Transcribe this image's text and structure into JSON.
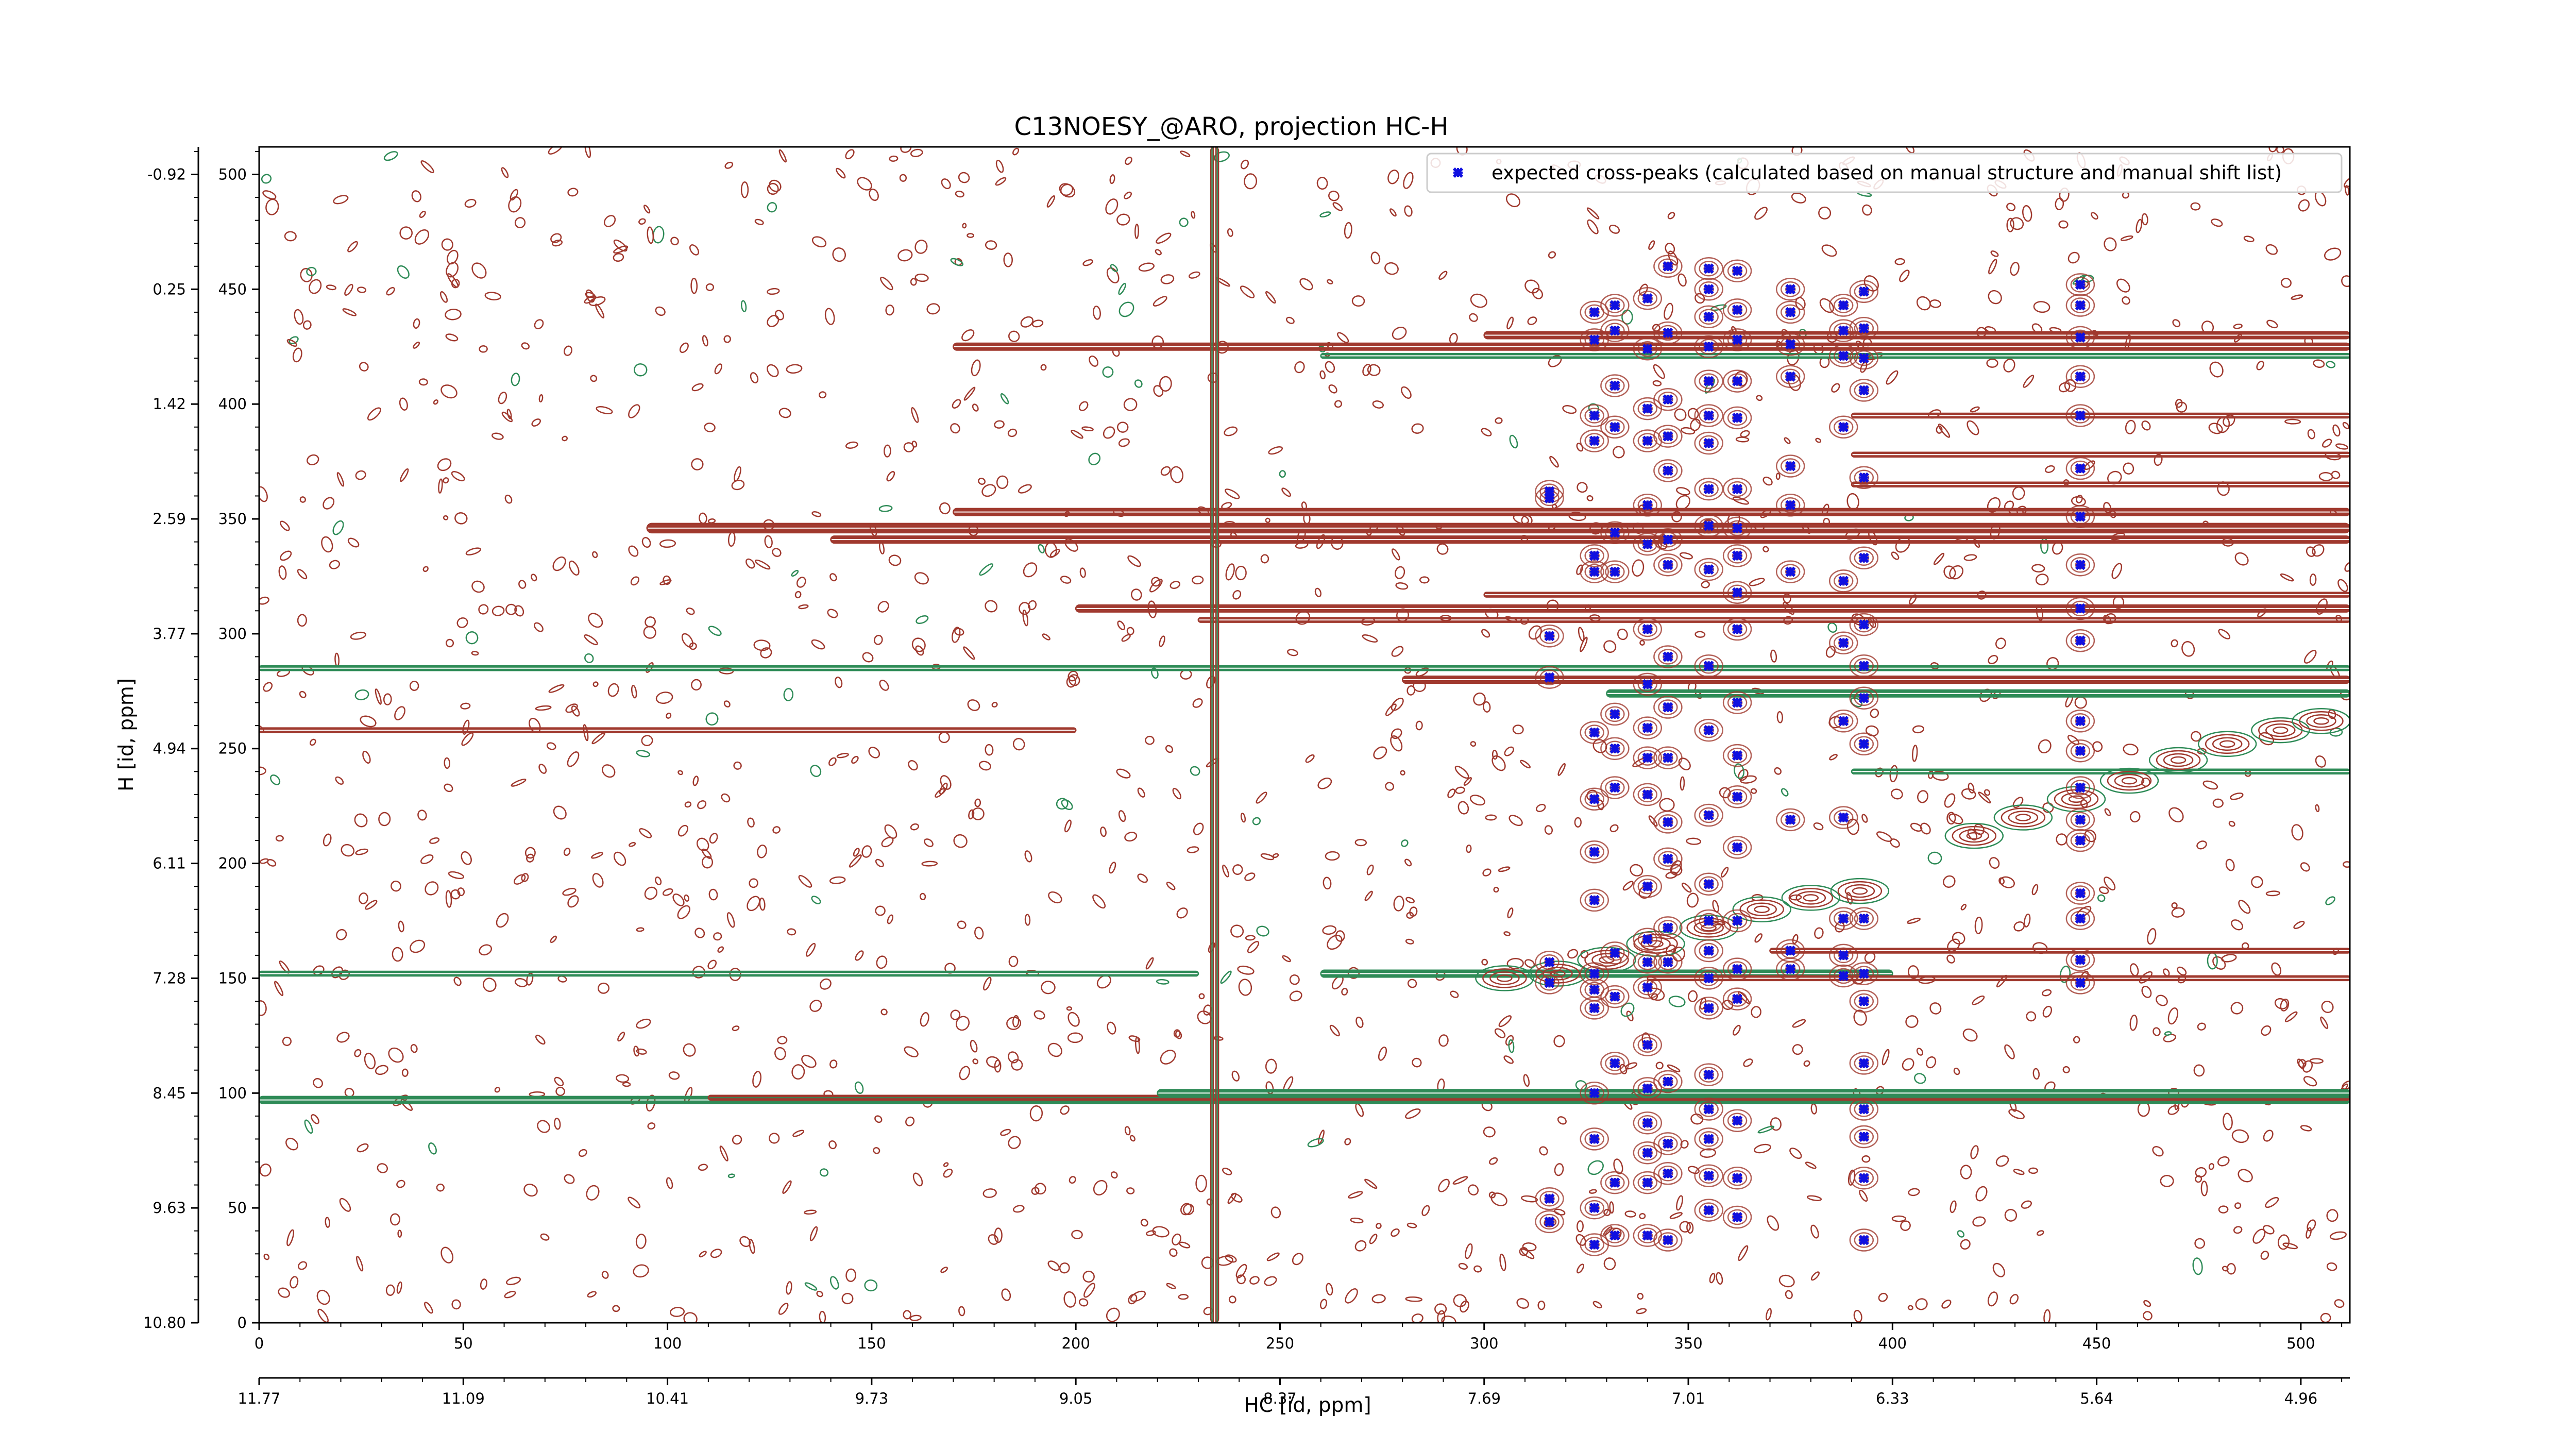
{
  "chart_data": {
    "type": "scatter",
    "title": "C13NOESY_@ARO, projection HC-H",
    "xlabel": "HC [id, ppm]",
    "ylabel": "H [id, ppm]",
    "xlim": [
      0,
      512
    ],
    "ylim": [
      0,
      512
    ],
    "x_ticks": [
      0,
      50,
      100,
      150,
      200,
      250,
      300,
      350,
      400,
      450,
      500
    ],
    "y_ticks": [
      0,
      50,
      100,
      150,
      200,
      250,
      300,
      350,
      400,
      450,
      500
    ],
    "x_ppm_labels": [
      "11.77",
      "11.09",
      "10.41",
      "9.73",
      "9.05",
      "8.37",
      "7.69",
      "7.01",
      "6.33",
      "5.64",
      "4.96"
    ],
    "y_ppm_labels": [
      "10.80",
      "9.63",
      "8.45",
      "7.28",
      "6.11",
      "4.94",
      "3.77",
      "2.59",
      "1.42",
      "0.25",
      "-0.92"
    ],
    "legend": {
      "position": "top-right",
      "entries": [
        "expected cross-peaks (calculated based on manual structure and manual shift list)"
      ]
    },
    "colors": {
      "positive_contour": "#a0392e",
      "negative_contour": "#2e8b57",
      "marker": "#1010e0"
    },
    "series": [
      {
        "name": "expected cross-peaks (calculated based on manual structure and manual shift list)",
        "marker": "x",
        "points": [
          [
            316,
            44
          ],
          [
            316,
            54
          ],
          [
            316,
            148
          ],
          [
            316,
            157
          ],
          [
            316,
            281
          ],
          [
            316,
            299
          ],
          [
            316,
            359
          ],
          [
            316,
            362
          ],
          [
            327,
            34
          ],
          [
            327,
            50
          ],
          [
            327,
            80
          ],
          [
            327,
            100
          ],
          [
            327,
            137
          ],
          [
            327,
            145
          ],
          [
            327,
            152
          ],
          [
            327,
            184
          ],
          [
            327,
            205
          ],
          [
            327,
            228
          ],
          [
            327,
            257
          ],
          [
            327,
            327
          ],
          [
            327,
            334
          ],
          [
            327,
            384
          ],
          [
            327,
            395
          ],
          [
            327,
            428
          ],
          [
            327,
            440
          ],
          [
            332,
            38
          ],
          [
            332,
            61
          ],
          [
            332,
            113
          ],
          [
            332,
            142
          ],
          [
            332,
            161
          ],
          [
            332,
            233
          ],
          [
            332,
            250
          ],
          [
            332,
            265
          ],
          [
            332,
            327
          ],
          [
            332,
            344
          ],
          [
            332,
            390
          ],
          [
            332,
            408
          ],
          [
            332,
            432
          ],
          [
            332,
            443
          ],
          [
            340,
            38
          ],
          [
            340,
            61
          ],
          [
            340,
            74
          ],
          [
            340,
            87
          ],
          [
            340,
            102
          ],
          [
            340,
            121
          ],
          [
            340,
            146
          ],
          [
            340,
            157
          ],
          [
            340,
            167
          ],
          [
            340,
            190
          ],
          [
            340,
            230
          ],
          [
            340,
            246
          ],
          [
            340,
            259
          ],
          [
            340,
            278
          ],
          [
            340,
            302
          ],
          [
            340,
            339
          ],
          [
            340,
            356
          ],
          [
            340,
            384
          ],
          [
            340,
            398
          ],
          [
            340,
            424
          ],
          [
            340,
            446
          ],
          [
            345,
            36
          ],
          [
            345,
            65
          ],
          [
            345,
            78
          ],
          [
            345,
            105
          ],
          [
            345,
            157
          ],
          [
            345,
            172
          ],
          [
            345,
            202
          ],
          [
            345,
            218
          ],
          [
            345,
            246
          ],
          [
            345,
            268
          ],
          [
            345,
            290
          ],
          [
            345,
            330
          ],
          [
            345,
            341
          ],
          [
            345,
            371
          ],
          [
            345,
            386
          ],
          [
            345,
            402
          ],
          [
            345,
            431
          ],
          [
            345,
            460
          ],
          [
            355,
            49
          ],
          [
            355,
            64
          ],
          [
            355,
            80
          ],
          [
            355,
            93
          ],
          [
            355,
            108
          ],
          [
            355,
            137
          ],
          [
            355,
            150
          ],
          [
            355,
            162
          ],
          [
            355,
            175
          ],
          [
            355,
            191
          ],
          [
            355,
            221
          ],
          [
            355,
            258
          ],
          [
            355,
            286
          ],
          [
            355,
            328
          ],
          [
            355,
            347
          ],
          [
            355,
            363
          ],
          [
            355,
            383
          ],
          [
            355,
            395
          ],
          [
            355,
            410
          ],
          [
            355,
            425
          ],
          [
            355,
            438
          ],
          [
            355,
            450
          ],
          [
            355,
            459
          ],
          [
            362,
            46
          ],
          [
            362,
            63
          ],
          [
            362,
            88
          ],
          [
            362,
            141
          ],
          [
            362,
            154
          ],
          [
            362,
            175
          ],
          [
            362,
            207
          ],
          [
            362,
            229
          ],
          [
            362,
            247
          ],
          [
            362,
            270
          ],
          [
            362,
            302
          ],
          [
            362,
            318
          ],
          [
            362,
            334
          ],
          [
            362,
            346
          ],
          [
            362,
            363
          ],
          [
            362,
            394
          ],
          [
            362,
            410
          ],
          [
            362,
            428
          ],
          [
            362,
            441
          ],
          [
            362,
            458
          ],
          [
            375,
            154
          ],
          [
            375,
            162
          ],
          [
            375,
            219
          ],
          [
            375,
            327
          ],
          [
            375,
            356
          ],
          [
            375,
            373
          ],
          [
            375,
            412
          ],
          [
            375,
            426
          ],
          [
            375,
            440
          ],
          [
            375,
            450
          ],
          [
            388,
            151
          ],
          [
            388,
            160
          ],
          [
            388,
            176
          ],
          [
            388,
            220
          ],
          [
            388,
            262
          ],
          [
            388,
            296
          ],
          [
            388,
            323
          ],
          [
            388,
            390
          ],
          [
            388,
            421
          ],
          [
            388,
            432
          ],
          [
            388,
            443
          ],
          [
            393,
            36
          ],
          [
            393,
            63
          ],
          [
            393,
            81
          ],
          [
            393,
            93
          ],
          [
            393,
            113
          ],
          [
            393,
            140
          ],
          [
            393,
            152
          ],
          [
            393,
            176
          ],
          [
            393,
            252
          ],
          [
            393,
            272
          ],
          [
            393,
            286
          ],
          [
            393,
            304
          ],
          [
            393,
            333
          ],
          [
            393,
            368
          ],
          [
            393,
            406
          ],
          [
            393,
            420
          ],
          [
            393,
            433
          ],
          [
            393,
            449
          ],
          [
            446,
            148
          ],
          [
            446,
            158
          ],
          [
            446,
            176
          ],
          [
            446,
            187
          ],
          [
            446,
            210
          ],
          [
            446,
            219
          ],
          [
            446,
            233
          ],
          [
            446,
            249
          ],
          [
            446,
            262
          ],
          [
            446,
            297
          ],
          [
            446,
            311
          ],
          [
            446,
            330
          ],
          [
            446,
            351
          ],
          [
            446,
            372
          ],
          [
            446,
            395
          ],
          [
            446,
            412
          ],
          [
            446,
            429
          ],
          [
            446,
            443
          ],
          [
            446,
            452
          ]
        ]
      }
    ]
  }
}
